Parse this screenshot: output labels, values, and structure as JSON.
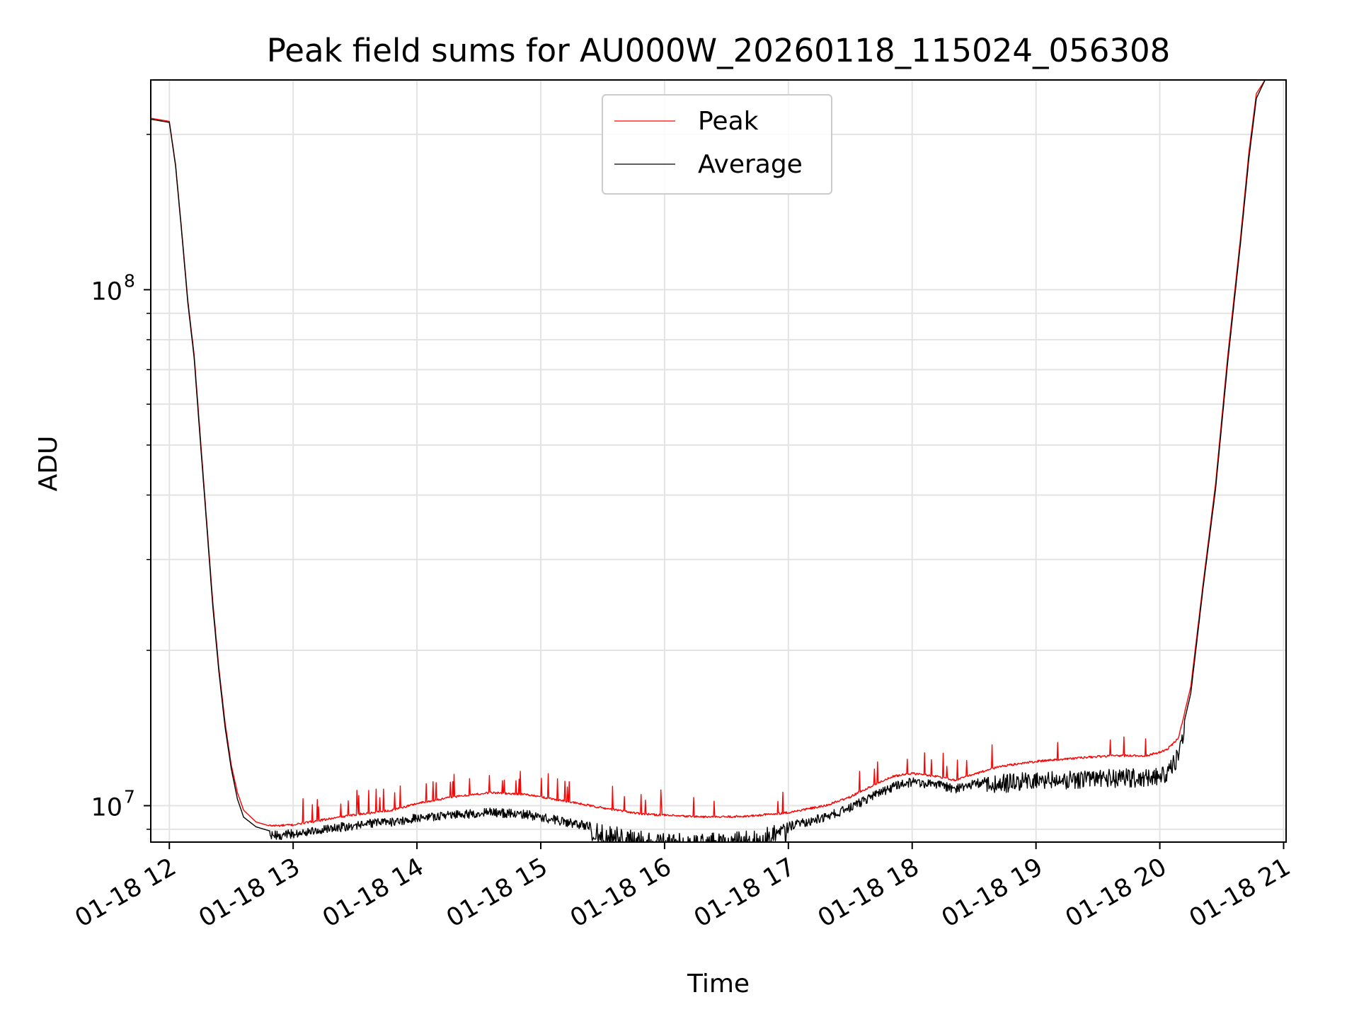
{
  "chart_data": {
    "type": "line",
    "title": "Peak field sums for AU000W_20260118_115024_056308",
    "xlabel": "Time",
    "ylabel": "ADU",
    "yscale": "log",
    "x_unit": "hours since 01-18 00:00",
    "xlim": [
      11.85,
      21.02
    ],
    "ylim": [
      8500000,
      255000000
    ],
    "grid": true,
    "legend_position": "top-center",
    "x_ticks": [
      {
        "value": 12,
        "label": "01-18 12"
      },
      {
        "value": 13,
        "label": "01-18 13"
      },
      {
        "value": 14,
        "label": "01-18 14"
      },
      {
        "value": 15,
        "label": "01-18 15"
      },
      {
        "value": 16,
        "label": "01-18 16"
      },
      {
        "value": 17,
        "label": "01-18 17"
      },
      {
        "value": 18,
        "label": "01-18 18"
      },
      {
        "value": 19,
        "label": "01-18 19"
      },
      {
        "value": 20,
        "label": "01-18 20"
      },
      {
        "value": 21,
        "label": "01-18 21"
      }
    ],
    "y_ticks": [
      {
        "value": 10000000,
        "base": "10",
        "exp": "7"
      },
      {
        "value": 100000000,
        "base": "10",
        "exp": "8"
      }
    ],
    "series": [
      {
        "name": "Peak",
        "color": "#ff0000",
        "x": [
          11.85,
          11.9,
          12.0,
          12.05,
          12.1,
          12.15,
          12.2,
          12.25,
          12.3,
          12.35,
          12.4,
          12.45,
          12.5,
          12.55,
          12.6,
          12.7,
          12.8,
          12.9,
          13.0,
          13.2,
          13.5,
          13.8,
          14.0,
          14.3,
          14.6,
          14.9,
          15.2,
          15.5,
          15.8,
          16.1,
          16.4,
          16.7,
          17.0,
          17.3,
          17.5,
          17.7,
          17.85,
          18.0,
          18.2,
          18.35,
          18.5,
          18.7,
          18.9,
          19.1,
          19.3,
          19.5,
          19.7,
          19.9,
          20.05,
          20.15,
          20.25,
          20.35,
          20.45,
          20.55,
          20.65,
          20.72,
          20.78,
          20.85
        ],
        "y": [
          215000000,
          214000000,
          212000000,
          175000000,
          130000000,
          95000000,
          75000000,
          52000000,
          36000000,
          25000000,
          18500000,
          14500000,
          12000000,
          10600000,
          9800000,
          9300000,
          9150000,
          9150000,
          9180000,
          9350000,
          9600000,
          9800000,
          10100000,
          10400000,
          10600000,
          10500000,
          10200000,
          9900000,
          9650000,
          9550000,
          9500000,
          9550000,
          9700000,
          10000000,
          10400000,
          11000000,
          11400000,
          11550000,
          11400000,
          11200000,
          11500000,
          11900000,
          12100000,
          12250000,
          12350000,
          12450000,
          12500000,
          12500000,
          12800000,
          13500000,
          17000000,
          27000000,
          42000000,
          75000000,
          125000000,
          185000000,
          240000000,
          255000000
        ]
      },
      {
        "name": "Average",
        "color": "#000000",
        "x": [
          11.85,
          11.9,
          12.0,
          12.05,
          12.1,
          12.15,
          12.2,
          12.25,
          12.3,
          12.35,
          12.4,
          12.45,
          12.5,
          12.55,
          12.6,
          12.7,
          12.8,
          12.9,
          13.0,
          13.2,
          13.5,
          13.8,
          14.0,
          14.3,
          14.6,
          14.9,
          15.2,
          15.5,
          15.8,
          16.1,
          16.4,
          16.7,
          17.0,
          17.3,
          17.5,
          17.7,
          17.85,
          18.0,
          18.2,
          18.35,
          18.5,
          18.7,
          18.9,
          19.1,
          19.3,
          19.5,
          19.7,
          19.9,
          20.05,
          20.15,
          20.25,
          20.35,
          20.45,
          20.55,
          20.65,
          20.72,
          20.78,
          20.85
        ],
        "y": [
          214000000,
          213000000,
          211000000,
          174000000,
          129000000,
          94000000,
          74000000,
          51000000,
          35500000,
          24500000,
          18200000,
          14200000,
          11800000,
          10300000,
          9500000,
          9100000,
          8950000,
          8950000,
          9000000,
          9150000,
          9350000,
          9500000,
          9650000,
          9800000,
          9900000,
          9800000,
          9500000,
          9200000,
          8950000,
          8850000,
          8850000,
          8950000,
          9300000,
          9700000,
          10100000,
          10700000,
          11100000,
          11350000,
          11200000,
          11000000,
          11250000,
          11500000,
          11600000,
          11650000,
          11700000,
          11750000,
          11800000,
          11800000,
          12000000,
          13000000,
          16500000,
          26500000,
          41000000,
          73000000,
          122000000,
          180000000,
          235000000,
          255000000
        ]
      }
    ]
  }
}
